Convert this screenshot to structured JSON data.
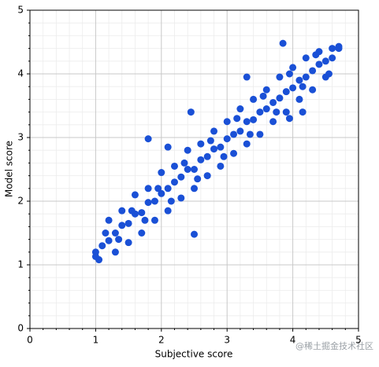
{
  "chart_data": {
    "type": "scatter",
    "xlabel": "Subjective score",
    "ylabel": "Model score",
    "watermark": "@稀土掘金技术社区",
    "color": "#1a50d6",
    "grid": true,
    "xlim": [
      0,
      5
    ],
    "ylim": [
      0,
      5
    ],
    "xticks": [
      0,
      1,
      2,
      3,
      4,
      5
    ],
    "yticks": [
      0,
      1,
      2,
      3,
      4,
      5
    ],
    "xminorticks": [
      0.2,
      0.4,
      0.6,
      0.8,
      1.2,
      1.4,
      1.6,
      1.8,
      2.2,
      2.4,
      2.6,
      2.8,
      3.2,
      3.4,
      3.6,
      3.8,
      4.2,
      4.4,
      4.6,
      4.8
    ],
    "yminorticks": [
      0.2,
      0.4,
      0.6,
      0.8,
      1.2,
      1.4,
      1.6,
      1.8,
      2.2,
      2.4,
      2.6,
      2.8,
      3.2,
      3.4,
      3.6,
      3.8,
      4.2,
      4.4,
      4.6,
      4.8
    ],
    "series": [
      {
        "name": "points",
        "x": [
          1.2,
          1.4,
          1.6,
          1.8,
          2.0,
          2.2,
          2.4,
          2.6,
          2.8,
          3.0,
          3.2,
          3.4,
          3.6,
          3.8,
          4.0,
          4.2,
          4.4,
          4.6,
          1.3,
          1.5,
          1.7,
          1.9,
          2.1,
          2.3,
          2.5,
          2.7,
          2.9,
          3.1,
          3.3,
          3.5,
          3.7,
          3.9,
          4.1,
          4.3,
          4.5,
          1.0,
          1.1,
          1.2,
          1.3,
          1.4,
          1.5,
          1.6,
          1.7,
          1.8,
          1.9,
          2.0,
          2.1,
          2.2,
          2.3,
          2.4,
          2.5,
          2.6,
          2.7,
          2.8,
          2.9,
          3.0,
          3.1,
          3.2,
          3.3,
          3.4,
          3.5,
          3.6,
          3.7,
          3.8,
          3.9,
          4.0,
          4.1,
          4.2,
          4.3,
          4.4,
          4.5,
          4.6,
          4.7,
          1.15,
          1.55,
          1.95,
          2.35,
          2.75,
          3.15,
          3.55,
          3.95,
          4.35,
          1.35,
          1.75,
          2.15,
          2.55,
          2.95,
          3.35,
          3.75,
          4.15,
          4.55,
          1.8,
          2.5,
          2.45,
          3.85,
          4.7,
          1.05,
          1.0,
          3.3,
          2.1,
          3.95,
          4.15
        ],
        "y": [
          1.7,
          1.85,
          2.1,
          2.2,
          2.45,
          2.55,
          2.8,
          2.9,
          3.1,
          3.25,
          3.45,
          3.6,
          3.75,
          3.95,
          4.1,
          4.25,
          4.35,
          4.4,
          1.2,
          1.35,
          1.5,
          1.7,
          1.85,
          2.05,
          2.2,
          2.4,
          2.55,
          2.75,
          2.9,
          3.05,
          3.25,
          3.4,
          3.6,
          3.75,
          3.95,
          1.2,
          1.3,
          1.38,
          1.5,
          1.62,
          1.65,
          1.8,
          1.82,
          1.98,
          2.0,
          2.12,
          2.2,
          2.3,
          2.38,
          2.5,
          2.5,
          2.65,
          2.7,
          2.82,
          2.85,
          2.98,
          3.05,
          3.1,
          3.25,
          3.28,
          3.4,
          3.45,
          3.55,
          3.62,
          3.72,
          3.78,
          3.9,
          3.95,
          4.05,
          4.15,
          4.2,
          4.25,
          4.4,
          1.5,
          1.85,
          2.2,
          2.6,
          2.95,
          3.3,
          3.65,
          4.0,
          4.3,
          1.4,
          1.7,
          2.0,
          2.35,
          2.7,
          3.05,
          3.4,
          3.8,
          4.0,
          2.98,
          1.48,
          3.4,
          4.48,
          4.43,
          1.08,
          1.13,
          3.95,
          2.85,
          3.3,
          3.4
        ]
      }
    ]
  }
}
